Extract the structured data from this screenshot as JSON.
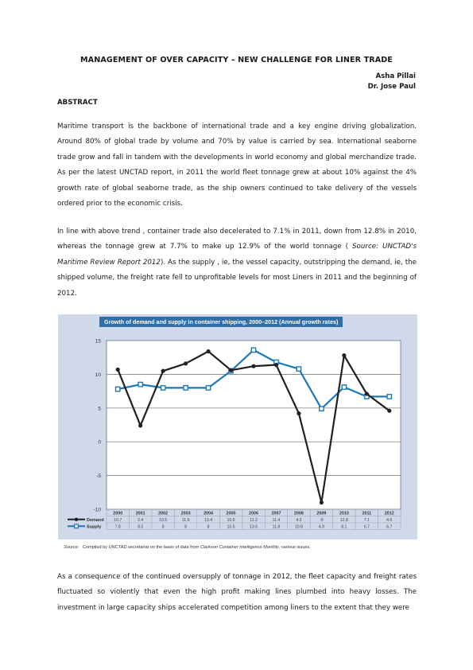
{
  "header": {
    "title": "MANAGEMENT OF OVER CAPACITY – NEW CHALLENGE FOR LINER TRADE",
    "authors": [
      "Asha Pillai",
      "Dr. Jose Paul"
    ],
    "section": "ABSTRACT"
  },
  "body": {
    "p1": "Maritime transport is the backbone of international trade and a key engine driving globalization. Around 80% of global trade by volume and 70% by value is carried by sea. International seaborne trade grow and fall in tandem with the developments in world economy and global merchandize trade. As per the latest UNCTAD report, in 2011 the world fleet tonnage grew at about 10% against the 4% growth rate of global seaborne trade, as the ship owners continued to take delivery of the vessels ordered prior to the economic crisis.",
    "p2_a": "In line with above trend , container trade also decelerated to 7.1% in 2011, down from 12.8% in 2010, whereas the tonnage grew at 7.7% to make up 12.9% of the world tonnage ( ",
    "p2_src": "Source: UNCTAD's Maritime Review Report 2012",
    "p2_b": "). As the supply , ie, the vessel capacity, outstripping the demand, ie, the shipped volume, the freight rate fell to unprofitable levels for most Liners in 2011 and the beginning of 2012.",
    "p3": "As a consequence of the continued oversupply of tonnage in 2012, the fleet capacity and freight rates fluctuated so violently that even the high profit making lines plumbed into heavy losses. The investment in large capacity ships accelerated competition among liners to the extent that they were"
  },
  "figure": {
    "source_label": "Source:",
    "source_text_a": "Compiled by UNCTAD secretariat on the basis of data from ",
    "source_text_italic": "Clarkson Container Intelligence Monthly",
    "source_text_b": ", various issues."
  },
  "chart_data": {
    "type": "line",
    "title": "Growth of demand and supply in container shipping, 2000–2012 (Annual growth rates)",
    "categories": [
      "2000",
      "2001",
      "2002",
      "2003",
      "2004",
      "2005",
      "2006",
      "2007",
      "2008",
      "2009",
      "2010",
      "2011",
      "2012"
    ],
    "ylim": [
      -10,
      15
    ],
    "yticks": [
      15,
      10,
      5,
      0,
      -5,
      -10
    ],
    "series": [
      {
        "name": "Demand",
        "color": "#231f20",
        "marker": "circle",
        "values": [
          10.7,
          2.4,
          10.5,
          11.6,
          13.4,
          10.6,
          11.2,
          11.4,
          4.2,
          -9,
          12.8,
          7.1,
          4.6
        ],
        "labels": [
          "10.7",
          "2.4",
          "10.5",
          "11.6",
          "13.4",
          "10.6",
          "11.2",
          "11.4",
          "4.2",
          "-9",
          "12.8",
          "7.1",
          "4.6"
        ]
      },
      {
        "name": "Supply",
        "color": "#1b79b8",
        "marker": "square",
        "values": [
          7.8,
          8.5,
          8,
          8,
          8,
          10.5,
          13.6,
          11.8,
          10.8,
          4.9,
          8.1,
          6.7,
          6.7
        ],
        "labels": [
          "7.8",
          "8.5",
          "8",
          "8",
          "8",
          "10.5",
          "13.6",
          "11.8",
          "10.8",
          "4.9",
          "8.1",
          "6.7",
          "6.7"
        ]
      }
    ],
    "grid": "horizontal",
    "legend": "table-below"
  }
}
